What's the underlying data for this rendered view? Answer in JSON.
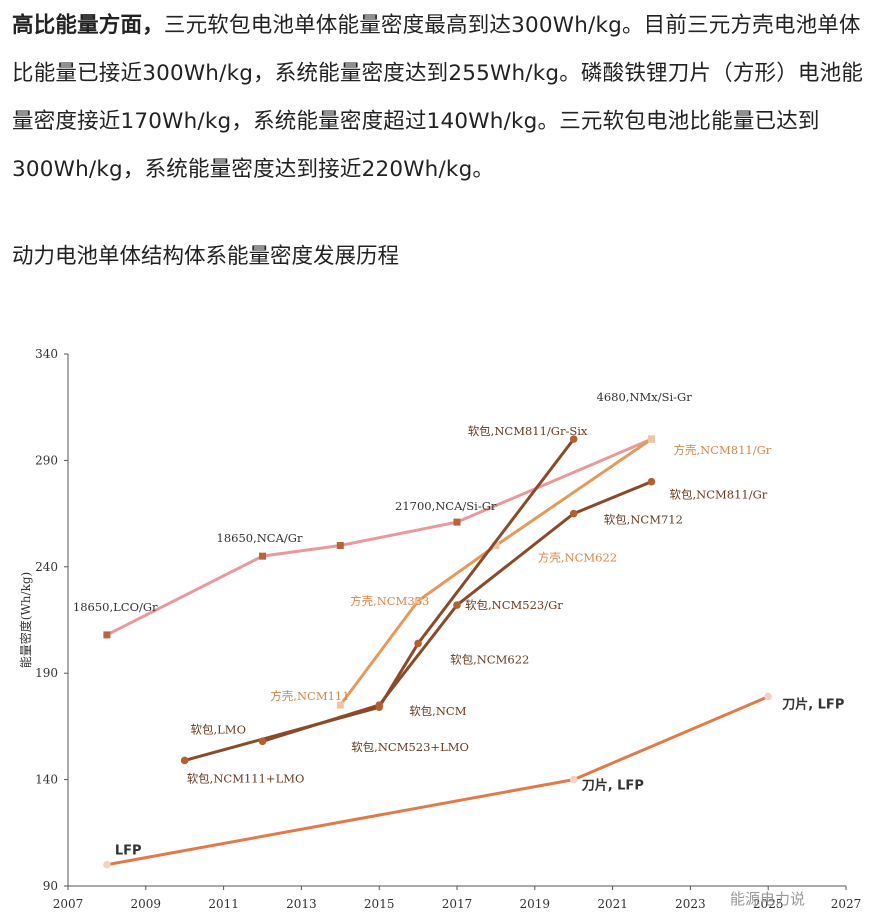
{
  "paragraph": {
    "bold": "高比能量方面，",
    "text": "三元软包电池单体能量密度最高到达300Wh/kg。目前三元方壳电池单体比能量已接近300Wh/kg，系统能量密度达到255Wh/kg。磷酸铁锂刀片（方形）电池能量密度接近170Wh/kg，系统能量密度超过140Wh/kg。三元软包电池比能量已达到300Wh/kg，系统能量密度达到接近220Wh/kg。"
  },
  "subtitle": "动力电池单体结构体系能量密度发展历程",
  "watermark": "能源电力说",
  "chart_data": {
    "type": "line",
    "ylabel": "能量密度(Wh/kg)",
    "xlabel": "",
    "xlim": [
      2007,
      2027
    ],
    "ylim": [
      90,
      340
    ],
    "xticks": [
      2007,
      2009,
      2011,
      2013,
      2015,
      2017,
      2019,
      2021,
      2023,
      2025,
      2027
    ],
    "yticks": [
      90,
      140,
      190,
      240,
      290,
      340
    ],
    "grid": false,
    "series": [
      {
        "name": "cylindrical",
        "color": "#e89a9a",
        "markerColor": "#b8643c",
        "marker": "square",
        "points": [
          [
            2008,
            208
          ],
          [
            2012,
            245
          ],
          [
            2014,
            250
          ],
          [
            2017,
            261
          ],
          [
            2022,
            300
          ]
        ]
      },
      {
        "name": "prismatic-ncm",
        "color": "#e39a5c",
        "markerColor": "#f0c4a0",
        "marker": "square",
        "points": [
          [
            2014,
            175
          ],
          [
            2016,
            224
          ],
          [
            2018,
            250
          ],
          [
            2022,
            300
          ]
        ]
      },
      {
        "name": "pouch-a",
        "color": "#8a4a2a",
        "markerColor": "#b2602e",
        "marker": "circle",
        "points": [
          [
            2010,
            149
          ],
          [
            2015,
            174
          ],
          [
            2016,
            204
          ],
          [
            2020,
            300
          ]
        ]
      },
      {
        "name": "pouch-b",
        "color": "#8a4a2a",
        "markerColor": "#b2602e",
        "marker": "circle",
        "points": [
          [
            2012,
            158
          ],
          [
            2015,
            175
          ],
          [
            2017,
            222
          ],
          [
            2020,
            265
          ],
          [
            2022,
            280
          ]
        ]
      },
      {
        "name": "lfp",
        "color": "#e07a4a",
        "markerColor": "#f2d2c0",
        "marker": "circle",
        "points": [
          [
            2008,
            100
          ],
          [
            2020,
            140
          ],
          [
            2025,
            179
          ]
        ]
      }
    ],
    "annotations": [
      {
        "text": "18650,LCO/Gr",
        "x": 2008,
        "y": 208,
        "dx": -34,
        "dy": -24,
        "anchor": "start",
        "color": "#333",
        "style": "lbl"
      },
      {
        "text": "18650,NCA/Gr",
        "x": 2012,
        "y": 245,
        "dx": -46,
        "dy": -14,
        "anchor": "start",
        "color": "#333",
        "style": "lbl"
      },
      {
        "text": "21700,NCA/Si-Gr",
        "x": 2017,
        "y": 261,
        "dx": -62,
        "dy": -12,
        "anchor": "start",
        "color": "#333",
        "style": "lbl"
      },
      {
        "text": "4680,NMx/Si-Gr",
        "x": 2022,
        "y": 300,
        "dx": -55,
        "dy": -38,
        "anchor": "start",
        "color": "#333",
        "style": "lbl"
      },
      {
        "text": "方壳,NCM811/Gr",
        "x": 2022,
        "y": 300,
        "dx": 22,
        "dy": 15,
        "anchor": "start",
        "color": "#d6874a",
        "style": "lbl"
      },
      {
        "text": "软包,NCM811/Gr-Six",
        "x": 2020,
        "y": 300,
        "dx": -106,
        "dy": -4,
        "anchor": "start",
        "color": "#6b3a1e",
        "style": "lbl"
      },
      {
        "text": "软包,NCM811/Gr",
        "x": 2022,
        "y": 280,
        "dx": 18,
        "dy": 17,
        "anchor": "start",
        "color": "#6b3a1e",
        "style": "lbl"
      },
      {
        "text": "软包,NCM712",
        "x": 2020,
        "y": 265,
        "dx": 30,
        "dy": 10,
        "anchor": "start",
        "color": "#6b3a1e",
        "style": "lbl"
      },
      {
        "text": "方壳,NCM622",
        "x": 2018,
        "y": 250,
        "dx": 42,
        "dy": 16,
        "anchor": "start",
        "color": "#d6874a",
        "style": "lbl"
      },
      {
        "text": "方壳,NCM333",
        "x": 2016,
        "y": 224,
        "dx": -68,
        "dy": 4,
        "anchor": "start",
        "color": "#d6874a",
        "style": "lbl"
      },
      {
        "text": "软包,NCM523/Gr",
        "x": 2017,
        "y": 222,
        "dx": 8,
        "dy": 4,
        "anchor": "start",
        "color": "#6b3a1e",
        "style": "lbl"
      },
      {
        "text": "软包,NCM622",
        "x": 2016,
        "y": 204,
        "dx": 32,
        "dy": 20,
        "anchor": "start",
        "color": "#6b3a1e",
        "style": "lbl"
      },
      {
        "text": "方壳,NCM111",
        "x": 2014,
        "y": 175,
        "dx": -70,
        "dy": -5,
        "anchor": "start",
        "color": "#d6874a",
        "style": "lbl"
      },
      {
        "text": "软包,NCM",
        "x": 2015,
        "y": 174,
        "dx": 30,
        "dy": 8,
        "anchor": "start",
        "color": "#6b3a1e",
        "style": "lbl"
      },
      {
        "text": "软包,NCM523+LMO",
        "x": 2015,
        "y": 174,
        "dx": -28,
        "dy": 44,
        "anchor": "start",
        "color": "#6b3a1e",
        "style": "lbl"
      },
      {
        "text": "软包,LMO",
        "x": 2012,
        "y": 158,
        "dx": -72,
        "dy": -8,
        "anchor": "start",
        "color": "#6b3a1e",
        "style": "lbl"
      },
      {
        "text": "软包,NCM111+LMO",
        "x": 2010,
        "y": 149,
        "dx": 2,
        "dy": 22,
        "anchor": "start",
        "color": "#6b3a1e",
        "style": "lbl"
      },
      {
        "text": "LFP",
        "x": 2008,
        "y": 100,
        "dx": 8,
        "dy": -10,
        "anchor": "start",
        "color": "#333",
        "style": "lbl-bold"
      },
      {
        "text": "刀片, LFP",
        "x": 2020,
        "y": 140,
        "dx": 8,
        "dy": 10,
        "anchor": "start",
        "color": "#333",
        "style": "lbl-bold"
      },
      {
        "text": "刀片, LFP",
        "x": 2025,
        "y": 179,
        "dx": 14,
        "dy": 12,
        "anchor": "start",
        "color": "#333",
        "style": "lbl-bold"
      }
    ]
  }
}
